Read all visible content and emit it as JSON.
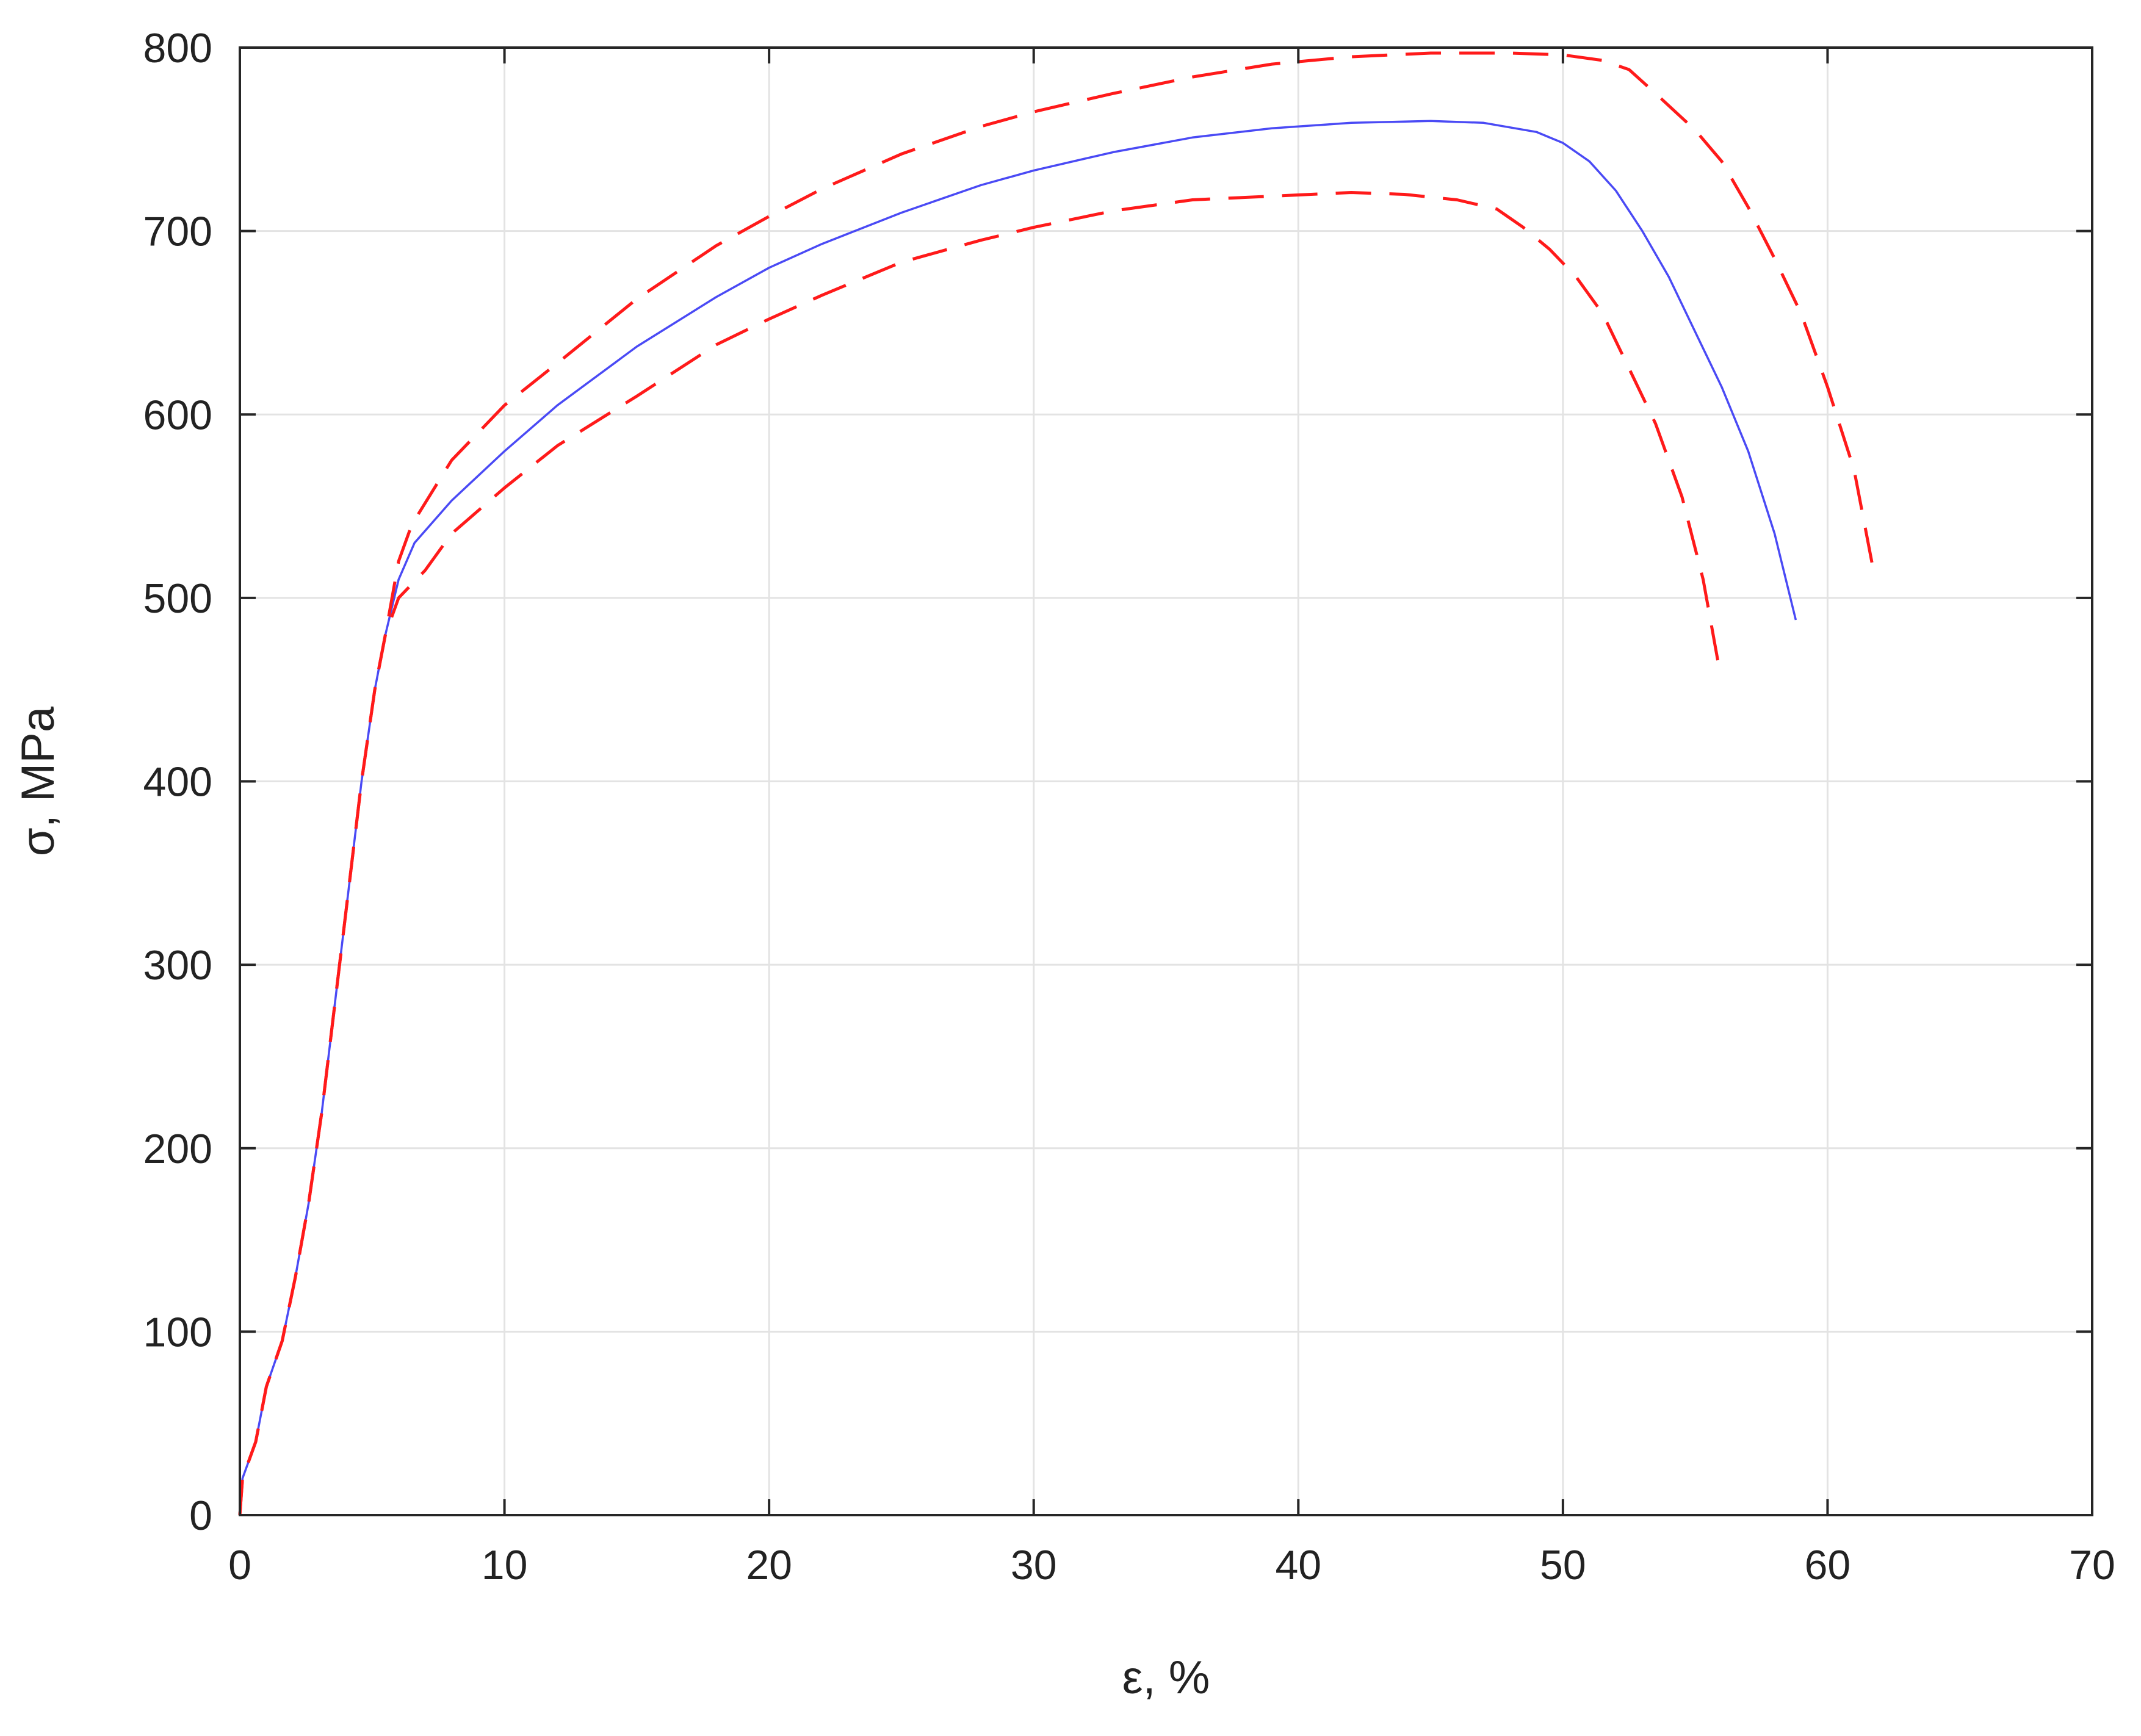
{
  "chart_data": {
    "type": "line",
    "xlabel": "ε, %",
    "ylabel": "σ, MPa",
    "xlim": [
      0,
      70
    ],
    "ylim": [
      0,
      800
    ],
    "xticks": [
      0,
      10,
      20,
      30,
      40,
      50,
      60,
      70
    ],
    "yticks": [
      0,
      100,
      200,
      300,
      400,
      500,
      600,
      700,
      800
    ],
    "xtick_labels": [
      "0",
      "10",
      "20",
      "30",
      "40",
      "50",
      "60",
      "70"
    ],
    "ytick_labels": [
      "0",
      "100",
      "200",
      "300",
      "400",
      "500",
      "600",
      "700",
      "800"
    ],
    "grid": true,
    "legend": "none",
    "series": [
      {
        "color": "#4a4af5",
        "style": "solid",
        "points": [
          [
            0.0,
            0
          ],
          [
            0.1,
            20
          ],
          [
            0.6,
            40
          ],
          [
            1.0,
            70
          ],
          [
            1.6,
            95
          ],
          [
            2.1,
            130
          ],
          [
            2.6,
            170
          ],
          [
            3.1,
            220
          ],
          [
            3.6,
            280
          ],
          [
            4.1,
            340
          ],
          [
            4.6,
            400
          ],
          [
            5.1,
            450
          ],
          [
            5.5,
            480
          ],
          [
            6.0,
            510
          ],
          [
            6.6,
            530
          ],
          [
            8.0,
            553
          ],
          [
            10.0,
            580
          ],
          [
            12.0,
            605
          ],
          [
            15.0,
            637
          ],
          [
            18.0,
            664
          ],
          [
            20.0,
            680
          ],
          [
            22.0,
            693
          ],
          [
            25.0,
            710
          ],
          [
            28.0,
            725
          ],
          [
            30.0,
            733
          ],
          [
            33.0,
            743
          ],
          [
            36.0,
            751
          ],
          [
            39.0,
            756
          ],
          [
            42.0,
            759
          ],
          [
            45.0,
            760
          ],
          [
            47.0,
            759
          ],
          [
            49.0,
            754
          ],
          [
            50.0,
            748
          ],
          [
            51.0,
            738
          ],
          [
            52.0,
            722
          ],
          [
            53.0,
            700
          ],
          [
            54.0,
            675
          ],
          [
            55.0,
            645
          ],
          [
            56.0,
            615
          ],
          [
            57.0,
            580
          ],
          [
            58.0,
            535
          ],
          [
            58.8,
            488
          ]
        ]
      },
      {
        "color": "#ff1a1a",
        "style": "dashed",
        "points": [
          [
            0.0,
            0
          ],
          [
            0.1,
            20
          ],
          [
            0.6,
            40
          ],
          [
            1.0,
            70
          ],
          [
            1.6,
            95
          ],
          [
            2.1,
            130
          ],
          [
            2.6,
            170
          ],
          [
            3.1,
            220
          ],
          [
            3.6,
            280
          ],
          [
            4.1,
            340
          ],
          [
            4.6,
            400
          ],
          [
            5.1,
            450
          ],
          [
            5.5,
            480
          ],
          [
            6.0,
            520
          ],
          [
            6.5,
            540
          ],
          [
            8.0,
            575
          ],
          [
            10.0,
            605
          ],
          [
            12.0,
            628
          ],
          [
            15.0,
            663
          ],
          [
            18.0,
            692
          ],
          [
            20.0,
            708
          ],
          [
            22.0,
            723
          ],
          [
            25.0,
            742
          ],
          [
            28.0,
            757
          ],
          [
            30.0,
            765
          ],
          [
            33.0,
            775
          ],
          [
            36.0,
            784
          ],
          [
            39.0,
            791
          ],
          [
            42.0,
            795
          ],
          [
            45.0,
            797
          ],
          [
            48.0,
            797
          ],
          [
            50.0,
            796
          ],
          [
            51.5,
            793
          ],
          [
            52.5,
            788
          ],
          [
            53.5,
            775
          ],
          [
            55.0,
            755
          ],
          [
            56.0,
            738
          ],
          [
            57.0,
            713
          ],
          [
            58.0,
            685
          ],
          [
            59.0,
            655
          ],
          [
            60.0,
            615
          ],
          [
            61.0,
            570
          ],
          [
            61.8,
            510
          ]
        ]
      },
      {
        "color": "#ff1a1a",
        "style": "dashed",
        "points": [
          [
            0.0,
            0
          ],
          [
            0.1,
            20
          ],
          [
            0.6,
            40
          ],
          [
            1.0,
            70
          ],
          [
            1.6,
            95
          ],
          [
            2.1,
            130
          ],
          [
            2.6,
            170
          ],
          [
            3.1,
            220
          ],
          [
            3.6,
            280
          ],
          [
            4.1,
            340
          ],
          [
            4.6,
            400
          ],
          [
            5.1,
            450
          ],
          [
            5.5,
            480
          ],
          [
            6.0,
            500
          ],
          [
            7.0,
            515
          ],
          [
            8.0,
            535
          ],
          [
            10.0,
            560
          ],
          [
            12.0,
            583
          ],
          [
            15.0,
            610
          ],
          [
            18.0,
            638
          ],
          [
            20.0,
            652
          ],
          [
            22.0,
            665
          ],
          [
            25.0,
            683
          ],
          [
            28.0,
            695
          ],
          [
            30.0,
            702
          ],
          [
            33.0,
            711
          ],
          [
            36.0,
            717
          ],
          [
            39.0,
            719
          ],
          [
            42.0,
            721
          ],
          [
            44.0,
            720
          ],
          [
            46.0,
            717
          ],
          [
            47.5,
            712
          ],
          [
            48.5,
            702
          ],
          [
            49.5,
            690
          ],
          [
            50.5,
            675
          ],
          [
            51.5,
            655
          ],
          [
            52.5,
            625
          ],
          [
            53.5,
            595
          ],
          [
            54.5,
            555
          ],
          [
            55.3,
            510
          ],
          [
            55.9,
            462
          ]
        ]
      }
    ]
  }
}
